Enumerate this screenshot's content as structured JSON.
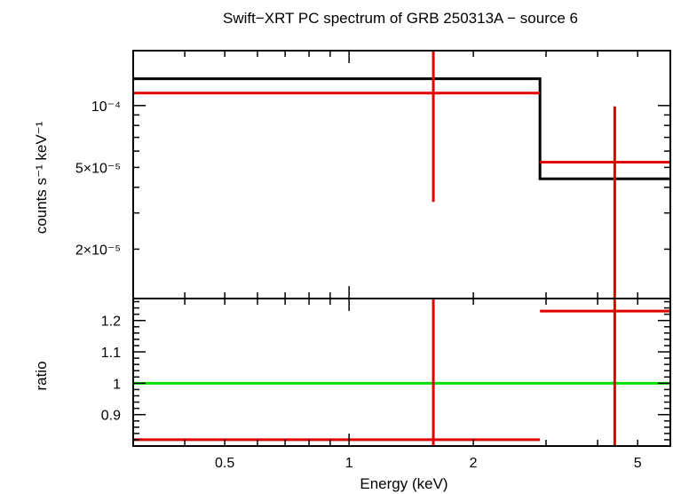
{
  "chart_data": {
    "type": "line",
    "title": "Swift−XRT PC spectrum of GRB 250313A − source 6",
    "xlabel": "Energy (keV)",
    "x_scale": "log",
    "xlim": [
      0.3,
      6.0
    ],
    "x_ticks": [
      {
        "value": 0.5,
        "label": "0.5"
      },
      {
        "value": 1,
        "label": "1"
      },
      {
        "value": 2,
        "label": "2"
      },
      {
        "value": 5,
        "label": "5"
      }
    ],
    "panels": [
      {
        "id": "spectrum",
        "ylabel": "counts s⁻¹ keV⁻¹",
        "y_scale": "log",
        "ylim": [
          1.15e-05,
          0.000185
        ],
        "y_ticks": [
          {
            "value": 0.0001,
            "label": "10⁻⁴"
          },
          {
            "value": 5e-05,
            "label": "5×10⁻⁵"
          },
          {
            "value": 2e-05,
            "label": "2×10⁻⁵"
          }
        ],
        "series": [
          {
            "kind": "model-step",
            "color": "#000000",
            "bins": [
              {
                "x_lo": 0.3,
                "x_hi": 2.9,
                "y": 0.000135
              },
              {
                "x_lo": 2.9,
                "x_hi": 6.0,
                "y": 4.4e-05
              }
            ]
          },
          {
            "kind": "data-crosses",
            "color": "#e00000",
            "points": [
              {
                "x_lo": 0.3,
                "x_hi": 2.9,
                "x": 1.6,
                "y": 0.000115,
                "y_lo": 3.4e-05,
                "y_hi": 0.00019
              },
              {
                "x_lo": 2.9,
                "x_hi": 6.0,
                "x": 4.4,
                "y": 5.3e-05,
                "y_lo": 1.15e-05,
                "y_hi": 9.9e-05
              }
            ]
          }
        ]
      },
      {
        "id": "ratio",
        "ylabel": "ratio",
        "y_scale": "linear",
        "ylim": [
          0.8,
          1.27
        ],
        "y_ticks": [
          {
            "value": 0.9,
            "label": "0.9"
          },
          {
            "value": 1,
            "label": "1"
          },
          {
            "value": 1.1,
            "label": "1.1"
          },
          {
            "value": 1.2,
            "label": "1.2"
          }
        ],
        "y_minor_step": 0.02,
        "series": [
          {
            "kind": "reference-line",
            "color": "#00e000",
            "y": 1.0
          },
          {
            "kind": "data-crosses",
            "color": "#e00000",
            "points": [
              {
                "x_lo": 0.3,
                "x_hi": 2.9,
                "x": 1.6,
                "y": 0.82,
                "y_lo": 0.8,
                "y_hi": 1.27
              },
              {
                "x_lo": 2.9,
                "x_hi": 6.0,
                "x": 4.4,
                "y": 1.23,
                "y_lo": 0.8,
                "y_hi": 1.27
              }
            ]
          }
        ]
      }
    ]
  }
}
